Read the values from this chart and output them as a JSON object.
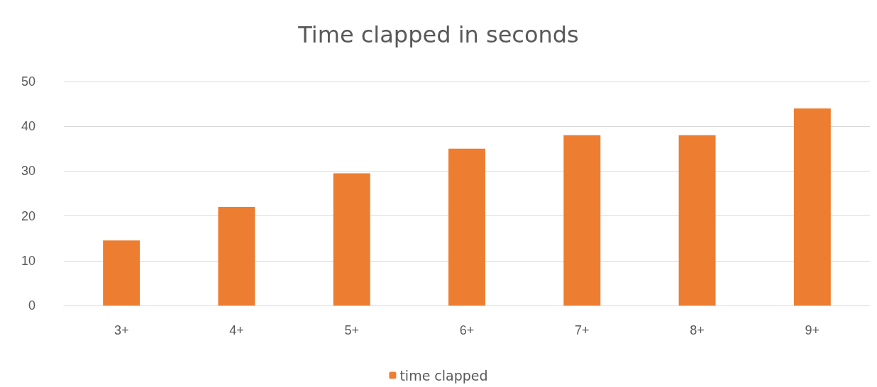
{
  "chart_data": {
    "type": "bar",
    "title": "Time clapped in seconds",
    "categories": [
      "3+",
      "4+",
      "5+",
      "6+",
      "7+",
      "8+",
      "9+"
    ],
    "series": [
      {
        "name": "time clapped",
        "color": "#ed7d31",
        "values": [
          14.5,
          22,
          29.5,
          35,
          38,
          38,
          44
        ]
      }
    ],
    "ylim": [
      0,
      50
    ],
    "yticks": [
      0,
      10,
      20,
      30,
      40,
      50
    ],
    "grid": "y",
    "legend": "bottom"
  }
}
